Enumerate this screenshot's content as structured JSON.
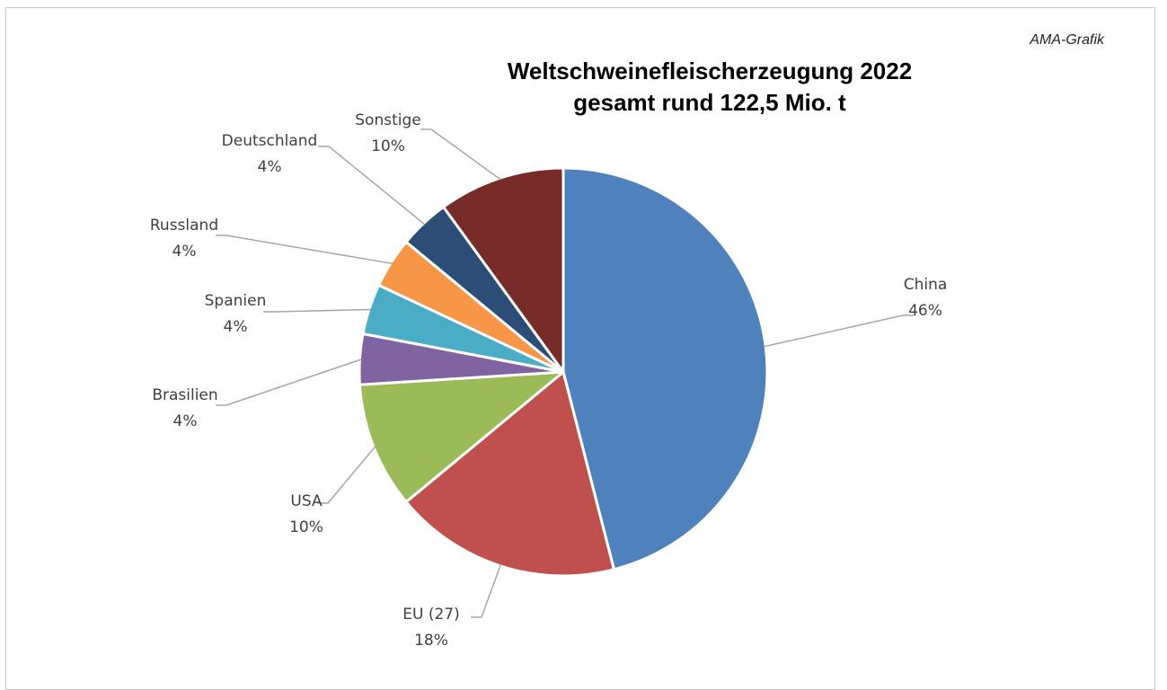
{
  "source_label": "AMA-Grafik",
  "chart_data": {
    "type": "pie",
    "title_line1": "Weltschweinefleischerzeugung 2022",
    "title_line2": "gesamt rund 122,5 Mio. t",
    "slices": [
      {
        "name": "China",
        "value": 46,
        "label": "46%",
        "color": "#4f81bd"
      },
      {
        "name": "EU (27)",
        "value": 18,
        "label": "18%",
        "color": "#c0504d"
      },
      {
        "name": "USA",
        "value": 10,
        "label": "10%",
        "color": "#9bbb59"
      },
      {
        "name": "Brasilien",
        "value": 4,
        "label": "4%",
        "color": "#8064a2"
      },
      {
        "name": "Spanien",
        "value": 4,
        "label": "4%",
        "color": "#4bacc6"
      },
      {
        "name": "Russland",
        "value": 4,
        "label": "4%",
        "color": "#f79646"
      },
      {
        "name": "Deutschland",
        "value": 4,
        "label": "4%",
        "color": "#2c4d75"
      },
      {
        "name": "Sonstige",
        "value": 10,
        "label": "10%",
        "color": "#772c2a"
      }
    ]
  }
}
